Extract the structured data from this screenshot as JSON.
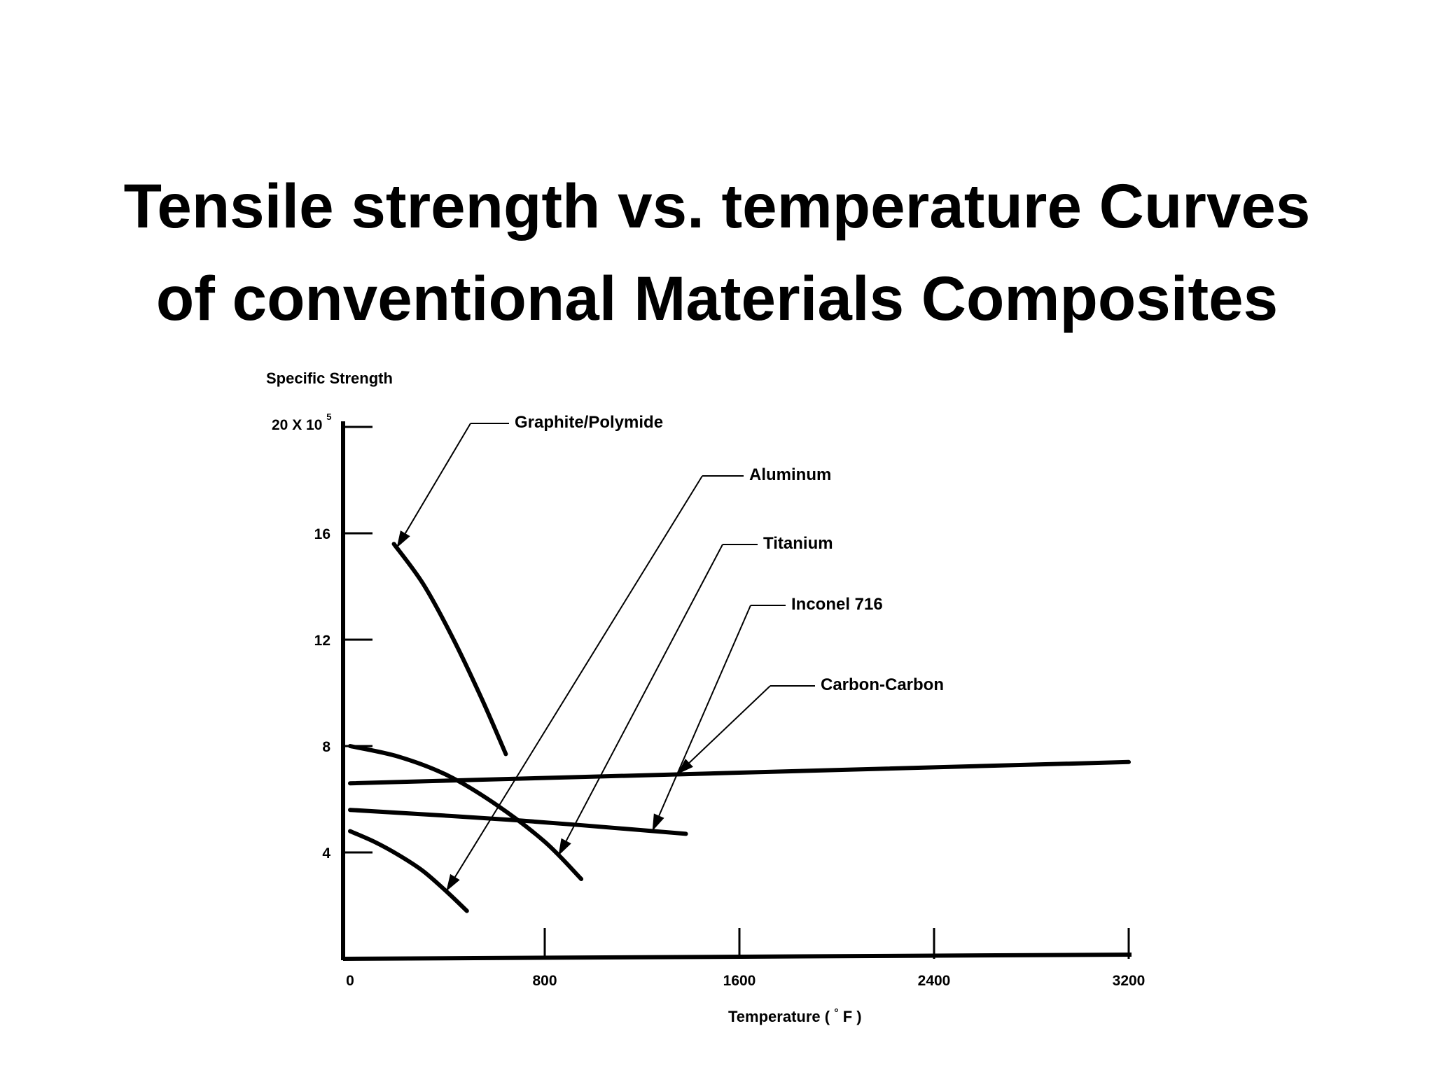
{
  "title": {
    "line1": "Tensile strength vs. temperature Curves",
    "line2": "of conventional Materials Composites"
  },
  "chart_data": {
    "type": "line",
    "ylabel": "Specific Strength",
    "y_top_label": "20 X 10",
    "y_top_exponent": "5",
    "xlabel_main": "Temperature ( ",
    "xlabel_degree": "°",
    "xlabel_unit": "F )",
    "xlim": [
      0,
      3200
    ],
    "ylim": [
      0,
      20
    ],
    "x_ticks": [
      0,
      800,
      1600,
      2400,
      3200
    ],
    "x_tick_labels": [
      "0",
      "800",
      "1600",
      "2400",
      "3200"
    ],
    "y_ticks": [
      4,
      8,
      12,
      16,
      20
    ],
    "y_tick_labels": [
      "4",
      "8",
      "12",
      "16"
    ],
    "grid": false,
    "series": [
      {
        "name": "Graphite/Polymide",
        "x": [
          180,
          300,
          420,
          540,
          640
        ],
        "y": [
          15.6,
          14.1,
          12.1,
          9.8,
          7.7
        ]
      },
      {
        "name": "Aluminum",
        "x": [
          0,
          100,
          200,
          300,
          400,
          480
        ],
        "y": [
          4.8,
          4.4,
          3.9,
          3.3,
          2.5,
          1.8
        ]
      },
      {
        "name": "Titanium",
        "x": [
          0,
          200,
          400,
          600,
          800,
          950
        ],
        "y": [
          8.0,
          7.6,
          6.9,
          5.8,
          4.4,
          3.0
        ]
      },
      {
        "name": "Inconel 716",
        "x": [
          0,
          700,
          1380
        ],
        "y": [
          5.6,
          5.2,
          4.7
        ]
      },
      {
        "name": "Carbon-Carbon",
        "x": [
          0,
          1600,
          3200
        ],
        "y": [
          6.6,
          7.0,
          7.4
        ]
      }
    ]
  }
}
